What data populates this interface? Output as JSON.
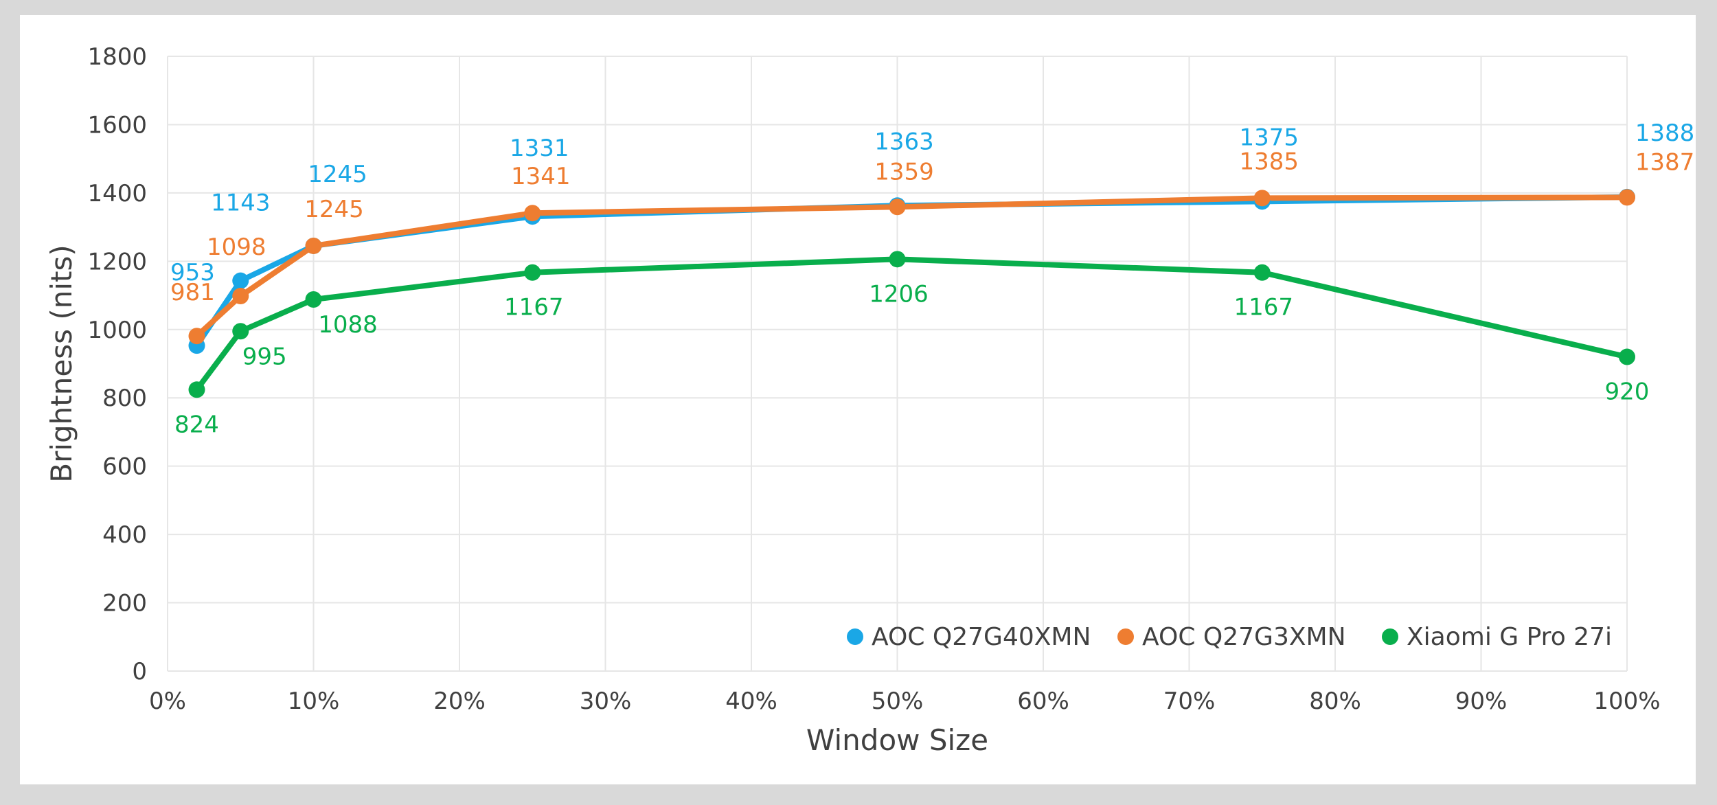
{
  "chart_data": {
    "type": "line",
    "xlabel": "Window Size",
    "ylabel": "Brightness (nits)",
    "x": [
      2,
      5,
      10,
      25,
      50,
      75,
      100
    ],
    "x_unit": "%",
    "xlim": [
      0,
      100
    ],
    "ylim": [
      0,
      1800
    ],
    "x_ticks": [
      "0%",
      "10%",
      "20%",
      "30%",
      "40%",
      "50%",
      "60%",
      "70%",
      "80%",
      "90%",
      "100%"
    ],
    "y_ticks": [
      "0",
      "200",
      "400",
      "600",
      "800",
      "1000",
      "1200",
      "1400",
      "1600",
      "1800"
    ],
    "grid": true,
    "legend_position": "bottom-right",
    "series": [
      {
        "name": "AOC Q27G40XMN",
        "color": "#1aa7e6",
        "values": [
          953,
          1143,
          1245,
          1331,
          1363,
          1375,
          1388
        ],
        "labels": [
          "953",
          "1143",
          "1245",
          "1331",
          "1363",
          "1375",
          "1388"
        ]
      },
      {
        "name": "AOC Q27G3XMN",
        "color": "#ee7d31",
        "values": [
          981,
          1098,
          1245,
          1341,
          1359,
          1385,
          1387
        ],
        "labels": [
          "981",
          "1098",
          "1245",
          "1341",
          "1359",
          "1385",
          "1387"
        ]
      },
      {
        "name": "Xiaomi G Pro 27i",
        "color": "#09ae4c",
        "values": [
          824,
          995,
          1088,
          1167,
          1206,
          1167,
          920
        ],
        "labels": [
          "824",
          "995",
          "1088",
          "1167",
          "1206",
          "1167",
          "920"
        ]
      }
    ]
  }
}
